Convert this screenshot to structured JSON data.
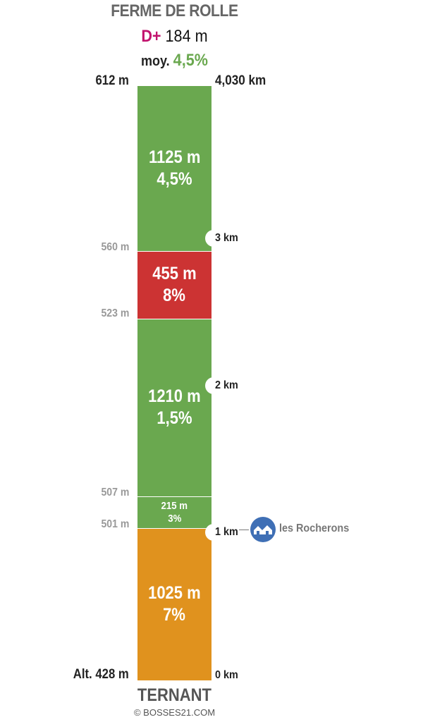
{
  "header": {
    "title": "FERME DE ROLLE",
    "dplus_prefix": "D+",
    "dplus_value": "184 m",
    "moy_prefix": "moy.",
    "moy_value": "4,5%"
  },
  "top": {
    "altitude": "612 m",
    "distance": "4,030 km"
  },
  "segments": [
    {
      "length": "1125 m",
      "gradient": "4,5%",
      "color": "#6aa84f"
    },
    {
      "length": "455 m",
      "gradient": "8%",
      "color": "#cc3333"
    },
    {
      "length": "1210 m",
      "gradient": "1,5%",
      "color": "#6aa84f"
    },
    {
      "length": "215 m",
      "gradient": "3%",
      "color": "#6aa84f"
    },
    {
      "length": "1025 m",
      "gradient": "7%",
      "color": "#e0921e"
    }
  ],
  "altitudes": [
    "560 m",
    "523 m",
    "507 m",
    "501 m",
    "Alt. 428 m"
  ],
  "km_markers": [
    "3 km",
    "2 km",
    "1 km",
    "0 km"
  ],
  "village": {
    "name": "les Rocherons",
    "icon": "village-icon",
    "color": "#3f6fb5"
  },
  "footer": {
    "name": "TERNANT",
    "copyright": "© BOSSES21.COM"
  }
}
